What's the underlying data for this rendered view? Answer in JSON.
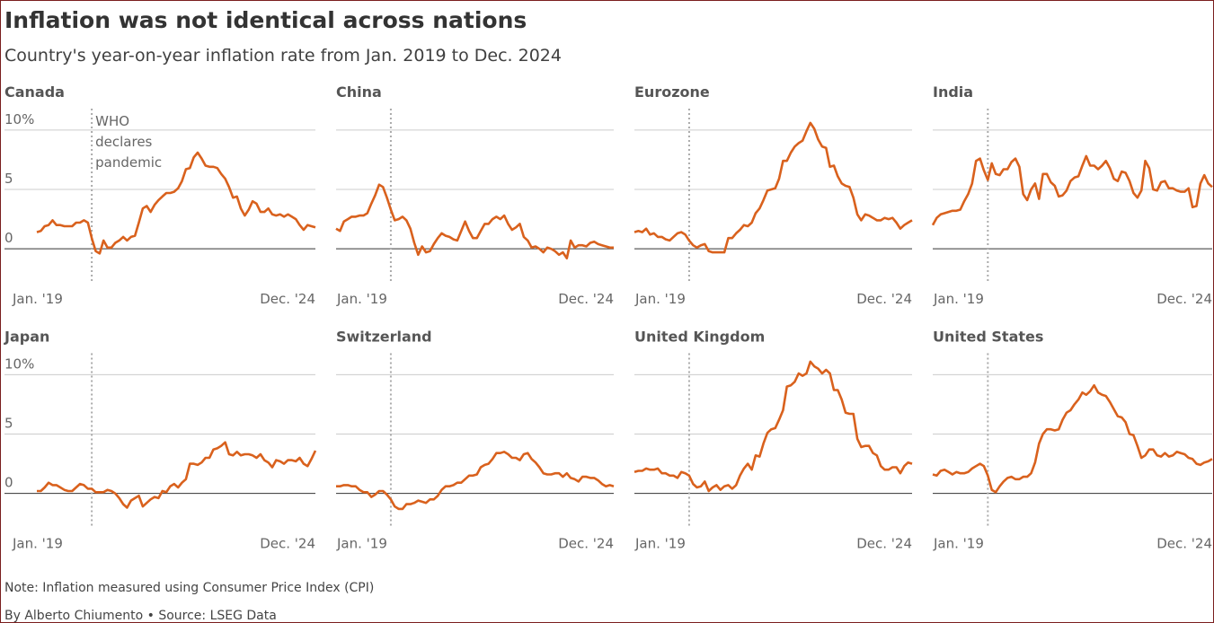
{
  "title": "Inflation was not identical across nations",
  "subtitle": "Country's year-on-year inflation rate from Jan. 2019 to Dec. 2024",
  "note": "Note: Inflation measured using Consumer Price Index (CPI)",
  "source": "By Alberto Chiumento • Source: LSEG Data",
  "chart_data": [
    {
      "type": "line",
      "title": "Canada",
      "color": "#d9611d",
      "ylim": [
        -1.5,
        11.8
      ],
      "yticks": [
        0,
        5,
        {
          "value": 10,
          "label": "10%"
        }
      ],
      "ytick_labels": true,
      "grid": true,
      "event_index": 14,
      "annotation": [
        "WHO",
        "declares",
        "pandemic"
      ],
      "categories": [
        "Jan. '19",
        null,
        null,
        null,
        null,
        null,
        null,
        null,
        null,
        null,
        null,
        null,
        null,
        null,
        null,
        null,
        null,
        null,
        null,
        null,
        null,
        null,
        null,
        null,
        null,
        null,
        null,
        null,
        null,
        null,
        null,
        null,
        null,
        null,
        null,
        null,
        null,
        null,
        null,
        null,
        null,
        null,
        null,
        null,
        null,
        null,
        null,
        null,
        null,
        null,
        null,
        null,
        null,
        null,
        null,
        null,
        null,
        null,
        null,
        null,
        null,
        null,
        null,
        null,
        null,
        null,
        null,
        null,
        null,
        null,
        null,
        "Dec. '24"
      ],
      "values": [
        1.4,
        1.5,
        1.9,
        2.0,
        2.4,
        2.0,
        2.0,
        1.9,
        1.9,
        1.9,
        2.2,
        2.2,
        2.4,
        2.2,
        0.9,
        -0.2,
        -0.4,
        0.7,
        0.1,
        0.1,
        0.5,
        0.7,
        1.0,
        0.7,
        1.0,
        1.1,
        2.2,
        3.4,
        3.6,
        3.1,
        3.7,
        4.1,
        4.4,
        4.7,
        4.7,
        4.8,
        5.1,
        5.7,
        6.7,
        6.8,
        7.7,
        8.1,
        7.6,
        7.0,
        6.9,
        6.9,
        6.8,
        6.3,
        5.9,
        5.2,
        4.3,
        4.4,
        3.4,
        2.8,
        3.3,
        4.0,
        3.8,
        3.1,
        3.1,
        3.4,
        2.9,
        2.8,
        2.9,
        2.7,
        2.9,
        2.7,
        2.5,
        2.0,
        1.6,
        2.0,
        1.9,
        1.8
      ]
    },
    {
      "type": "line",
      "title": "China",
      "color": "#d9611d",
      "ylim": [
        -1.5,
        11.8
      ],
      "yticks": [
        0,
        5,
        10
      ],
      "grid": true,
      "event_index": 14,
      "categories": [
        "Jan. '19",
        null,
        null,
        null,
        null,
        null,
        null,
        null,
        null,
        null,
        null,
        null,
        null,
        null,
        null,
        null,
        null,
        null,
        null,
        null,
        null,
        null,
        null,
        null,
        null,
        null,
        null,
        null,
        null,
        null,
        null,
        null,
        null,
        null,
        null,
        null,
        null,
        null,
        null,
        null,
        null,
        null,
        null,
        null,
        null,
        null,
        null,
        null,
        null,
        null,
        null,
        null,
        null,
        null,
        null,
        null,
        null,
        null,
        null,
        null,
        null,
        null,
        null,
        null,
        null,
        null,
        null,
        null,
        null,
        null,
        null,
        "Dec. '24"
      ],
      "values": [
        1.7,
        1.5,
        2.3,
        2.5,
        2.7,
        2.7,
        2.8,
        2.8,
        3.0,
        3.8,
        4.5,
        5.4,
        5.2,
        4.3,
        3.3,
        2.4,
        2.5,
        2.7,
        2.4,
        1.7,
        0.5,
        -0.5,
        0.2,
        -0.3,
        -0.2,
        0.4,
        0.9,
        1.3,
        1.1,
        1.0,
        0.8,
        0.7,
        1.5,
        2.3,
        1.5,
        0.9,
        0.9,
        1.5,
        2.1,
        2.1,
        2.5,
        2.7,
        2.5,
        2.8,
        2.1,
        1.6,
        1.8,
        2.1,
        1.0,
        0.7,
        0.1,
        0.2,
        0.0,
        -0.3,
        0.1,
        0.0,
        -0.2,
        -0.5,
        -0.3,
        -0.8,
        0.7,
        0.1,
        0.3,
        0.3,
        0.2,
        0.5,
        0.6,
        0.4,
        0.3,
        0.2,
        0.1,
        0.1
      ]
    },
    {
      "type": "line",
      "title": "Eurozone",
      "color": "#d9611d",
      "ylim": [
        -1.5,
        11.8
      ],
      "yticks": [
        0,
        5,
        10
      ],
      "grid": true,
      "event_index": 14,
      "categories": [
        "Jan. '19",
        null,
        null,
        null,
        null,
        null,
        null,
        null,
        null,
        null,
        null,
        null,
        null,
        null,
        null,
        null,
        null,
        null,
        null,
        null,
        null,
        null,
        null,
        null,
        null,
        null,
        null,
        null,
        null,
        null,
        null,
        null,
        null,
        null,
        null,
        null,
        null,
        null,
        null,
        null,
        null,
        null,
        null,
        null,
        null,
        null,
        null,
        null,
        null,
        null,
        null,
        null,
        null,
        null,
        null,
        null,
        null,
        null,
        null,
        null,
        null,
        null,
        null,
        null,
        null,
        null,
        null,
        null,
        null,
        null,
        null,
        "Dec. '24"
      ],
      "values": [
        1.4,
        1.5,
        1.4,
        1.7,
        1.2,
        1.3,
        1.0,
        1.0,
        0.8,
        0.7,
        1.0,
        1.3,
        1.4,
        1.2,
        0.7,
        0.3,
        0.1,
        0.3,
        0.4,
        -0.2,
        -0.3,
        -0.3,
        -0.3,
        -0.3,
        0.9,
        0.9,
        1.3,
        1.6,
        2.0,
        1.9,
        2.2,
        3.0,
        3.4,
        4.1,
        4.9,
        5.0,
        5.1,
        5.9,
        7.4,
        7.4,
        8.1,
        8.6,
        8.9,
        9.1,
        9.9,
        10.6,
        10.1,
        9.2,
        8.6,
        8.5,
        6.9,
        7.0,
        6.1,
        5.5,
        5.3,
        5.2,
        4.3,
        2.9,
        2.4,
        2.9,
        2.8,
        2.6,
        2.4,
        2.4,
        2.6,
        2.5,
        2.6,
        2.2,
        1.7,
        2.0,
        2.2,
        2.4
      ]
    },
    {
      "type": "line",
      "title": "India",
      "color": "#d9611d",
      "ylim": [
        -1.5,
        11.8
      ],
      "yticks": [
        0,
        5,
        10
      ],
      "grid": true,
      "event_index": 14,
      "categories": [
        "Jan. '19",
        null,
        null,
        null,
        null,
        null,
        null,
        null,
        null,
        null,
        null,
        null,
        null,
        null,
        null,
        null,
        null,
        null,
        null,
        null,
        null,
        null,
        null,
        null,
        null,
        null,
        null,
        null,
        null,
        null,
        null,
        null,
        null,
        null,
        null,
        null,
        null,
        null,
        null,
        null,
        null,
        null,
        null,
        null,
        null,
        null,
        null,
        null,
        null,
        null,
        null,
        null,
        null,
        null,
        null,
        null,
        null,
        null,
        null,
        null,
        null,
        null,
        null,
        null,
        null,
        null,
        null,
        null,
        null,
        null,
        null,
        "Dec. '24"
      ],
      "values": [
        2.0,
        2.6,
        2.9,
        3.0,
        3.1,
        3.2,
        3.2,
        3.3,
        4.0,
        4.6,
        5.5,
        7.4,
        7.6,
        6.6,
        5.8,
        7.2,
        6.3,
        6.2,
        6.7,
        6.7,
        7.3,
        7.6,
        6.9,
        4.6,
        4.1,
        5.0,
        5.5,
        4.2,
        6.3,
        6.3,
        5.6,
        5.3,
        4.4,
        4.5,
        4.9,
        5.7,
        6.0,
        6.1,
        7.0,
        7.8,
        7.0,
        7.0,
        6.7,
        7.0,
        7.4,
        6.8,
        5.9,
        5.7,
        6.5,
        6.4,
        5.7,
        4.7,
        4.3,
        4.9,
        7.4,
        6.8,
        5.0,
        4.9,
        5.6,
        5.7,
        5.1,
        5.1,
        4.9,
        4.8,
        4.8,
        5.1,
        3.5,
        3.6,
        5.5,
        6.2,
        5.5,
        5.2
      ]
    },
    {
      "type": "line",
      "title": "Japan",
      "color": "#d9611d",
      "ylim": [
        -1.5,
        11.8
      ],
      "yticks": [
        0,
        5,
        {
          "value": 10,
          "label": "10%"
        }
      ],
      "ytick_labels": true,
      "grid": true,
      "event_index": 14,
      "categories": [
        "Jan. '19",
        null,
        null,
        null,
        null,
        null,
        null,
        null,
        null,
        null,
        null,
        null,
        null,
        null,
        null,
        null,
        null,
        null,
        null,
        null,
        null,
        null,
        null,
        null,
        null,
        null,
        null,
        null,
        null,
        null,
        null,
        null,
        null,
        null,
        null,
        null,
        null,
        null,
        null,
        null,
        null,
        null,
        null,
        null,
        null,
        null,
        null,
        null,
        null,
        null,
        null,
        null,
        null,
        null,
        null,
        null,
        null,
        null,
        null,
        null,
        null,
        null,
        null,
        null,
        null,
        null,
        null,
        null,
        null,
        null,
        null,
        "Dec. '24"
      ],
      "values": [
        0.2,
        0.2,
        0.5,
        0.9,
        0.7,
        0.7,
        0.5,
        0.3,
        0.2,
        0.2,
        0.5,
        0.8,
        0.7,
        0.4,
        0.4,
        0.1,
        0.1,
        0.1,
        0.3,
        0.2,
        0.0,
        -0.4,
        -0.9,
        -1.2,
        -0.6,
        -0.4,
        -0.2,
        -1.1,
        -0.8,
        -0.5,
        -0.3,
        -0.4,
        0.2,
        0.1,
        0.6,
        0.8,
        0.5,
        0.9,
        1.2,
        2.5,
        2.5,
        2.4,
        2.6,
        3.0,
        3.0,
        3.7,
        3.8,
        4.0,
        4.3,
        3.3,
        3.2,
        3.5,
        3.2,
        3.3,
        3.3,
        3.2,
        3.0,
        3.3,
        2.8,
        2.6,
        2.2,
        2.8,
        2.7,
        2.5,
        2.8,
        2.8,
        2.7,
        3.0,
        2.5,
        2.3,
        2.9,
        3.6
      ]
    },
    {
      "type": "line",
      "title": "Switzerland",
      "color": "#d9611d",
      "ylim": [
        -1.5,
        11.8
      ],
      "yticks": [
        0,
        5,
        10
      ],
      "grid": true,
      "event_index": 14,
      "categories": [
        "Jan. '19",
        null,
        null,
        null,
        null,
        null,
        null,
        null,
        null,
        null,
        null,
        null,
        null,
        null,
        null,
        null,
        null,
        null,
        null,
        null,
        null,
        null,
        null,
        null,
        null,
        null,
        null,
        null,
        null,
        null,
        null,
        null,
        null,
        null,
        null,
        null,
        null,
        null,
        null,
        null,
        null,
        null,
        null,
        null,
        null,
        null,
        null,
        null,
        null,
        null,
        null,
        null,
        null,
        null,
        null,
        null,
        null,
        null,
        null,
        null,
        null,
        null,
        null,
        null,
        null,
        null,
        null,
        null,
        null,
        null,
        null,
        "Dec. '24"
      ],
      "values": [
        0.6,
        0.6,
        0.7,
        0.7,
        0.6,
        0.6,
        0.3,
        0.1,
        0.1,
        -0.3,
        -0.1,
        0.2,
        0.2,
        -0.1,
        -0.5,
        -1.1,
        -1.3,
        -1.3,
        -0.9,
        -0.9,
        -0.8,
        -0.6,
        -0.7,
        -0.8,
        -0.5,
        -0.5,
        -0.2,
        0.3,
        0.6,
        0.6,
        0.7,
        0.9,
        0.9,
        1.2,
        1.5,
        1.5,
        1.6,
        2.2,
        2.4,
        2.5,
        2.9,
        3.4,
        3.4,
        3.5,
        3.3,
        3.0,
        3.0,
        2.8,
        3.3,
        3.4,
        2.9,
        2.6,
        2.2,
        1.7,
        1.6,
        1.6,
        1.7,
        1.7,
        1.4,
        1.7,
        1.3,
        1.2,
        1.0,
        1.4,
        1.4,
        1.3,
        1.3,
        1.1,
        0.8,
        0.6,
        0.7,
        0.6
      ]
    },
    {
      "type": "line",
      "title": "United Kingdom",
      "color": "#d9611d",
      "ylim": [
        -1.5,
        11.8
      ],
      "yticks": [
        0,
        5,
        10
      ],
      "grid": true,
      "event_index": 14,
      "categories": [
        "Jan. '19",
        null,
        null,
        null,
        null,
        null,
        null,
        null,
        null,
        null,
        null,
        null,
        null,
        null,
        null,
        null,
        null,
        null,
        null,
        null,
        null,
        null,
        null,
        null,
        null,
        null,
        null,
        null,
        null,
        null,
        null,
        null,
        null,
        null,
        null,
        null,
        null,
        null,
        null,
        null,
        null,
        null,
        null,
        null,
        null,
        null,
        null,
        null,
        null,
        null,
        null,
        null,
        null,
        null,
        null,
        null,
        null,
        null,
        null,
        null,
        null,
        null,
        null,
        null,
        null,
        null,
        null,
        null,
        null,
        null,
        null,
        "Dec. '24"
      ],
      "values": [
        1.8,
        1.9,
        1.9,
        2.1,
        2.0,
        2.0,
        2.1,
        1.7,
        1.7,
        1.5,
        1.5,
        1.3,
        1.8,
        1.7,
        1.5,
        0.8,
        0.5,
        0.6,
        1.0,
        0.2,
        0.5,
        0.7,
        0.3,
        0.6,
        0.7,
        0.4,
        0.7,
        1.5,
        2.1,
        2.5,
        2.0,
        3.2,
        3.1,
        4.2,
        5.1,
        5.4,
        5.5,
        6.2,
        7.0,
        9.0,
        9.1,
        9.4,
        10.1,
        9.9,
        10.1,
        11.1,
        10.7,
        10.5,
        10.1,
        10.4,
        10.1,
        8.7,
        8.7,
        7.9,
        6.8,
        6.7,
        6.7,
        4.6,
        3.9,
        4.0,
        4.0,
        3.4,
        3.2,
        2.3,
        2.0,
        2.0,
        2.2,
        2.2,
        1.7,
        2.3,
        2.6,
        2.5
      ]
    },
    {
      "type": "line",
      "title": "United States",
      "color": "#d9611d",
      "ylim": [
        -1.5,
        11.8
      ],
      "yticks": [
        0,
        5,
        10
      ],
      "grid": true,
      "event_index": 14,
      "categories": [
        "Jan. '19",
        null,
        null,
        null,
        null,
        null,
        null,
        null,
        null,
        null,
        null,
        null,
        null,
        null,
        null,
        null,
        null,
        null,
        null,
        null,
        null,
        null,
        null,
        null,
        null,
        null,
        null,
        null,
        null,
        null,
        null,
        null,
        null,
        null,
        null,
        null,
        null,
        null,
        null,
        null,
        null,
        null,
        null,
        null,
        null,
        null,
        null,
        null,
        null,
        null,
        null,
        null,
        null,
        null,
        null,
        null,
        null,
        null,
        null,
        null,
        null,
        null,
        null,
        null,
        null,
        null,
        null,
        null,
        null,
        null,
        null,
        "Dec. '24"
      ],
      "values": [
        1.6,
        1.5,
        1.9,
        2.0,
        1.8,
        1.6,
        1.8,
        1.7,
        1.7,
        1.8,
        2.1,
        2.3,
        2.5,
        2.3,
        1.5,
        0.3,
        0.1,
        0.6,
        1.0,
        1.3,
        1.4,
        1.2,
        1.2,
        1.4,
        1.4,
        1.7,
        2.6,
        4.2,
        5.0,
        5.4,
        5.4,
        5.3,
        5.4,
        6.2,
        6.8,
        7.0,
        7.5,
        7.9,
        8.5,
        8.3,
        8.6,
        9.1,
        8.5,
        8.3,
        8.2,
        7.7,
        7.1,
        6.5,
        6.4,
        6.0,
        5.0,
        4.9,
        4.0,
        3.0,
        3.2,
        3.7,
        3.7,
        3.2,
        3.1,
        3.4,
        3.1,
        3.2,
        3.5,
        3.4,
        3.3,
        3.0,
        2.9,
        2.5,
        2.4,
        2.6,
        2.7,
        2.9
      ]
    }
  ]
}
